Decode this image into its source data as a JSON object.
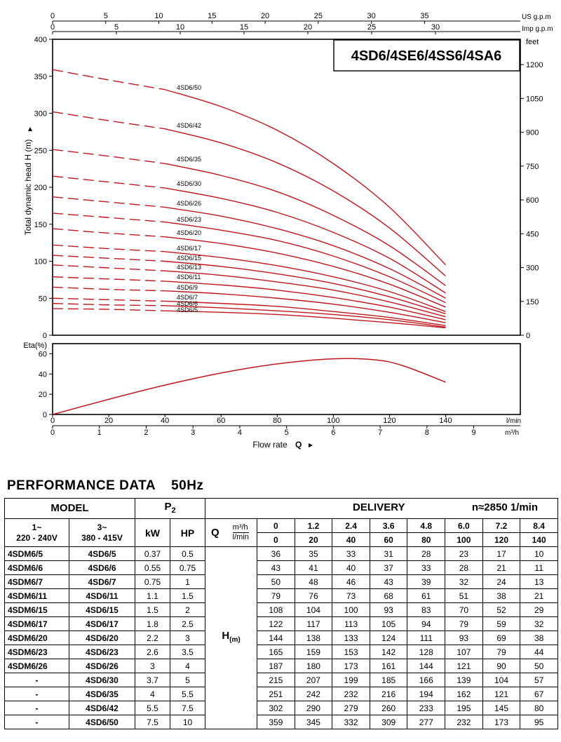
{
  "chart_data": [
    {
      "type": "line",
      "title": "4SD6/4SE6/4SS6/4SA6",
      "ylabel": "Total dynamic head H (m)",
      "y2label": "feet",
      "x_label_top1": "US g.p.m",
      "x_label_top2": "Imp g.p.m",
      "xlim_lmin": [
        0,
        140
      ],
      "ylim": [
        0,
        400
      ],
      "y_ticks": [
        "400",
        "350",
        "300",
        "250",
        "200",
        "150",
        "100",
        "50",
        "0"
      ],
      "y2_ticks": [
        "1200",
        "1050",
        "900",
        "750",
        "600",
        "450",
        "300",
        "150",
        "0"
      ],
      "top_us_ticks": [
        "0",
        "5",
        "10",
        "15",
        "20",
        "25",
        "30",
        "35"
      ],
      "top_imp_ticks": [
        "0",
        "5",
        "10",
        "15",
        "20",
        "25",
        "30"
      ],
      "x": [
        0,
        20,
        40,
        60,
        80,
        100,
        120,
        140
      ],
      "series": [
        {
          "name": "4SD6/50",
          "values": [
            359,
            345,
            332,
            309,
            277,
            232,
            173,
            95
          ]
        },
        {
          "name": "4SD6/42",
          "values": [
            302,
            290,
            279,
            260,
            233,
            195,
            145,
            80
          ]
        },
        {
          "name": "4SD6/35",
          "values": [
            251,
            242,
            232,
            216,
            194,
            162,
            121,
            67
          ]
        },
        {
          "name": "4SD6/30",
          "values": [
            215,
            207,
            199,
            185,
            166,
            139,
            104,
            57
          ]
        },
        {
          "name": "4SD6/26",
          "values": [
            187,
            180,
            173,
            161,
            144,
            121,
            90,
            50
          ]
        },
        {
          "name": "4SD6/23",
          "values": [
            165,
            159,
            153,
            142,
            128,
            107,
            79,
            44
          ]
        },
        {
          "name": "4SD6/20",
          "values": [
            144,
            138,
            133,
            124,
            111,
            93,
            69,
            38
          ]
        },
        {
          "name": "4SD6/17",
          "values": [
            122,
            117,
            113,
            105,
            94,
            79,
            59,
            32
          ]
        },
        {
          "name": "4SD6/15",
          "values": [
            108,
            104,
            100,
            93,
            83,
            70,
            52,
            29
          ]
        },
        {
          "name": "4SD6/13",
          "values": [
            95,
            91,
            87,
            81,
            72,
            61,
            45,
            25
          ]
        },
        {
          "name": "4SD6/11",
          "values": [
            79,
            76,
            73,
            68,
            61,
            51,
            38,
            21
          ]
        },
        {
          "name": "4SD6/9",
          "values": [
            65,
            62,
            60,
            56,
            50,
            42,
            31,
            17
          ]
        },
        {
          "name": "4SD6/7",
          "values": [
            50,
            48,
            46,
            43,
            39,
            32,
            24,
            13
          ]
        },
        {
          "name": "4SD6/6",
          "values": [
            43,
            41,
            40,
            37,
            33,
            28,
            21,
            11
          ]
        },
        {
          "name": "4SD6/5",
          "values": [
            36,
            35,
            33,
            31,
            28,
            23,
            17,
            10
          ]
        }
      ],
      "line_color": "#c0161c"
    },
    {
      "type": "line",
      "ylabel": "Eta(%)",
      "ylim": [
        0,
        70
      ],
      "y_ticks": [
        "60",
        "40",
        "20",
        "0"
      ],
      "x_lmin_ticks": [
        "0",
        "20",
        "40",
        "60",
        "80",
        "100",
        "120",
        "140"
      ],
      "x_lmin_unit": "l/min",
      "x_m3h_ticks": [
        "0",
        "1",
        "2",
        "3",
        "4",
        "5",
        "6",
        "7",
        "8",
        "9"
      ],
      "x_m3h_unit": "m³/h",
      "xlabel": "Flow rate",
      "xlabel_symbol": "Q",
      "x": [
        0,
        20,
        40,
        60,
        80,
        100,
        115,
        125,
        140
      ],
      "values": [
        0,
        15,
        29,
        41,
        50,
        55,
        54,
        48,
        32
      ],
      "line_color": "#c0161c"
    }
  ],
  "table": {
    "title": "PERFORMANCE  DATA",
    "freq": "50Hz",
    "model_header": "MODEL",
    "p2_header": "P",
    "p2_sub": "2",
    "delivery_header": "DELIVERY",
    "speed": "n≈2850 1/min",
    "col_1ph": "1~",
    "col_1ph_v": "220 - 240V",
    "col_3ph": "3~",
    "col_3ph_v": "380 - 415V",
    "kw": "kW",
    "hp": "HP",
    "q_label": "Q",
    "q_unit1": "m³/h",
    "q_unit2": "l/min",
    "h_label": "H",
    "h_unit": "(m)",
    "q_m3h": [
      "0",
      "1.2",
      "2.4",
      "3.6",
      "4.8",
      "6.0",
      "7.2",
      "8.4"
    ],
    "q_lmin": [
      "0",
      "20",
      "40",
      "60",
      "80",
      "100",
      "120",
      "140"
    ],
    "rows": [
      {
        "m1": "4SDM6/5",
        "m3": "4SD6/5",
        "kw": "0.37",
        "hp": "0.5",
        "h": [
          "36",
          "35",
          "33",
          "31",
          "28",
          "23",
          "17",
          "10"
        ]
      },
      {
        "m1": "4SDM6/6",
        "m3": "4SD6/6",
        "kw": "0.55",
        "hp": "0.75",
        "h": [
          "43",
          "41",
          "40",
          "37",
          "33",
          "28",
          "21",
          "11"
        ]
      },
      {
        "m1": "4SDM6/7",
        "m3": "4SD6/7",
        "kw": "0.75",
        "hp": "1",
        "h": [
          "50",
          "48",
          "46",
          "43",
          "39",
          "32",
          "24",
          "13"
        ]
      },
      {
        "m1": "4SDM6/11",
        "m3": "4SD6/11",
        "kw": "1.1",
        "hp": "1.5",
        "h": [
          "79",
          "76",
          "73",
          "68",
          "61",
          "51",
          "38",
          "21"
        ]
      },
      {
        "m1": "4SDM6/15",
        "m3": "4SD6/15",
        "kw": "1.5",
        "hp": "2",
        "h": [
          "108",
          "104",
          "100",
          "93",
          "83",
          "70",
          "52",
          "29"
        ]
      },
      {
        "m1": "4SDM6/17",
        "m3": "4SD6/17",
        "kw": "1.8",
        "hp": "2.5",
        "h": [
          "122",
          "117",
          "113",
          "105",
          "94",
          "79",
          "59",
          "32"
        ]
      },
      {
        "m1": "4SDM6/20",
        "m3": "4SD6/20",
        "kw": "2.2",
        "hp": "3",
        "h": [
          "144",
          "138",
          "133",
          "124",
          "111",
          "93",
          "69",
          "38"
        ]
      },
      {
        "m1": "4SDM6/23",
        "m3": "4SD6/23",
        "kw": "2.6",
        "hp": "3.5",
        "h": [
          "165",
          "159",
          "153",
          "142",
          "128",
          "107",
          "79",
          "44"
        ]
      },
      {
        "m1": "4SDM6/26",
        "m3": "4SD6/26",
        "kw": "3",
        "hp": "4",
        "h": [
          "187",
          "180",
          "173",
          "161",
          "144",
          "121",
          "90",
          "50"
        ]
      },
      {
        "m1": "-",
        "m3": "4SD6/30",
        "kw": "3.7",
        "hp": "5",
        "h": [
          "215",
          "207",
          "199",
          "185",
          "166",
          "139",
          "104",
          "57"
        ]
      },
      {
        "m1": "-",
        "m3": "4SD6/35",
        "kw": "4",
        "hp": "5.5",
        "h": [
          "251",
          "242",
          "232",
          "216",
          "194",
          "162",
          "121",
          "67"
        ]
      },
      {
        "m1": "-",
        "m3": "4SD6/42",
        "kw": "5.5",
        "hp": "7.5",
        "h": [
          "302",
          "290",
          "279",
          "260",
          "233",
          "195",
          "145",
          "80"
        ]
      },
      {
        "m1": "-",
        "m3": "4SD6/50",
        "kw": "7.5",
        "hp": "10",
        "h": [
          "359",
          "345",
          "332",
          "309",
          "277",
          "232",
          "173",
          "95"
        ]
      }
    ]
  }
}
